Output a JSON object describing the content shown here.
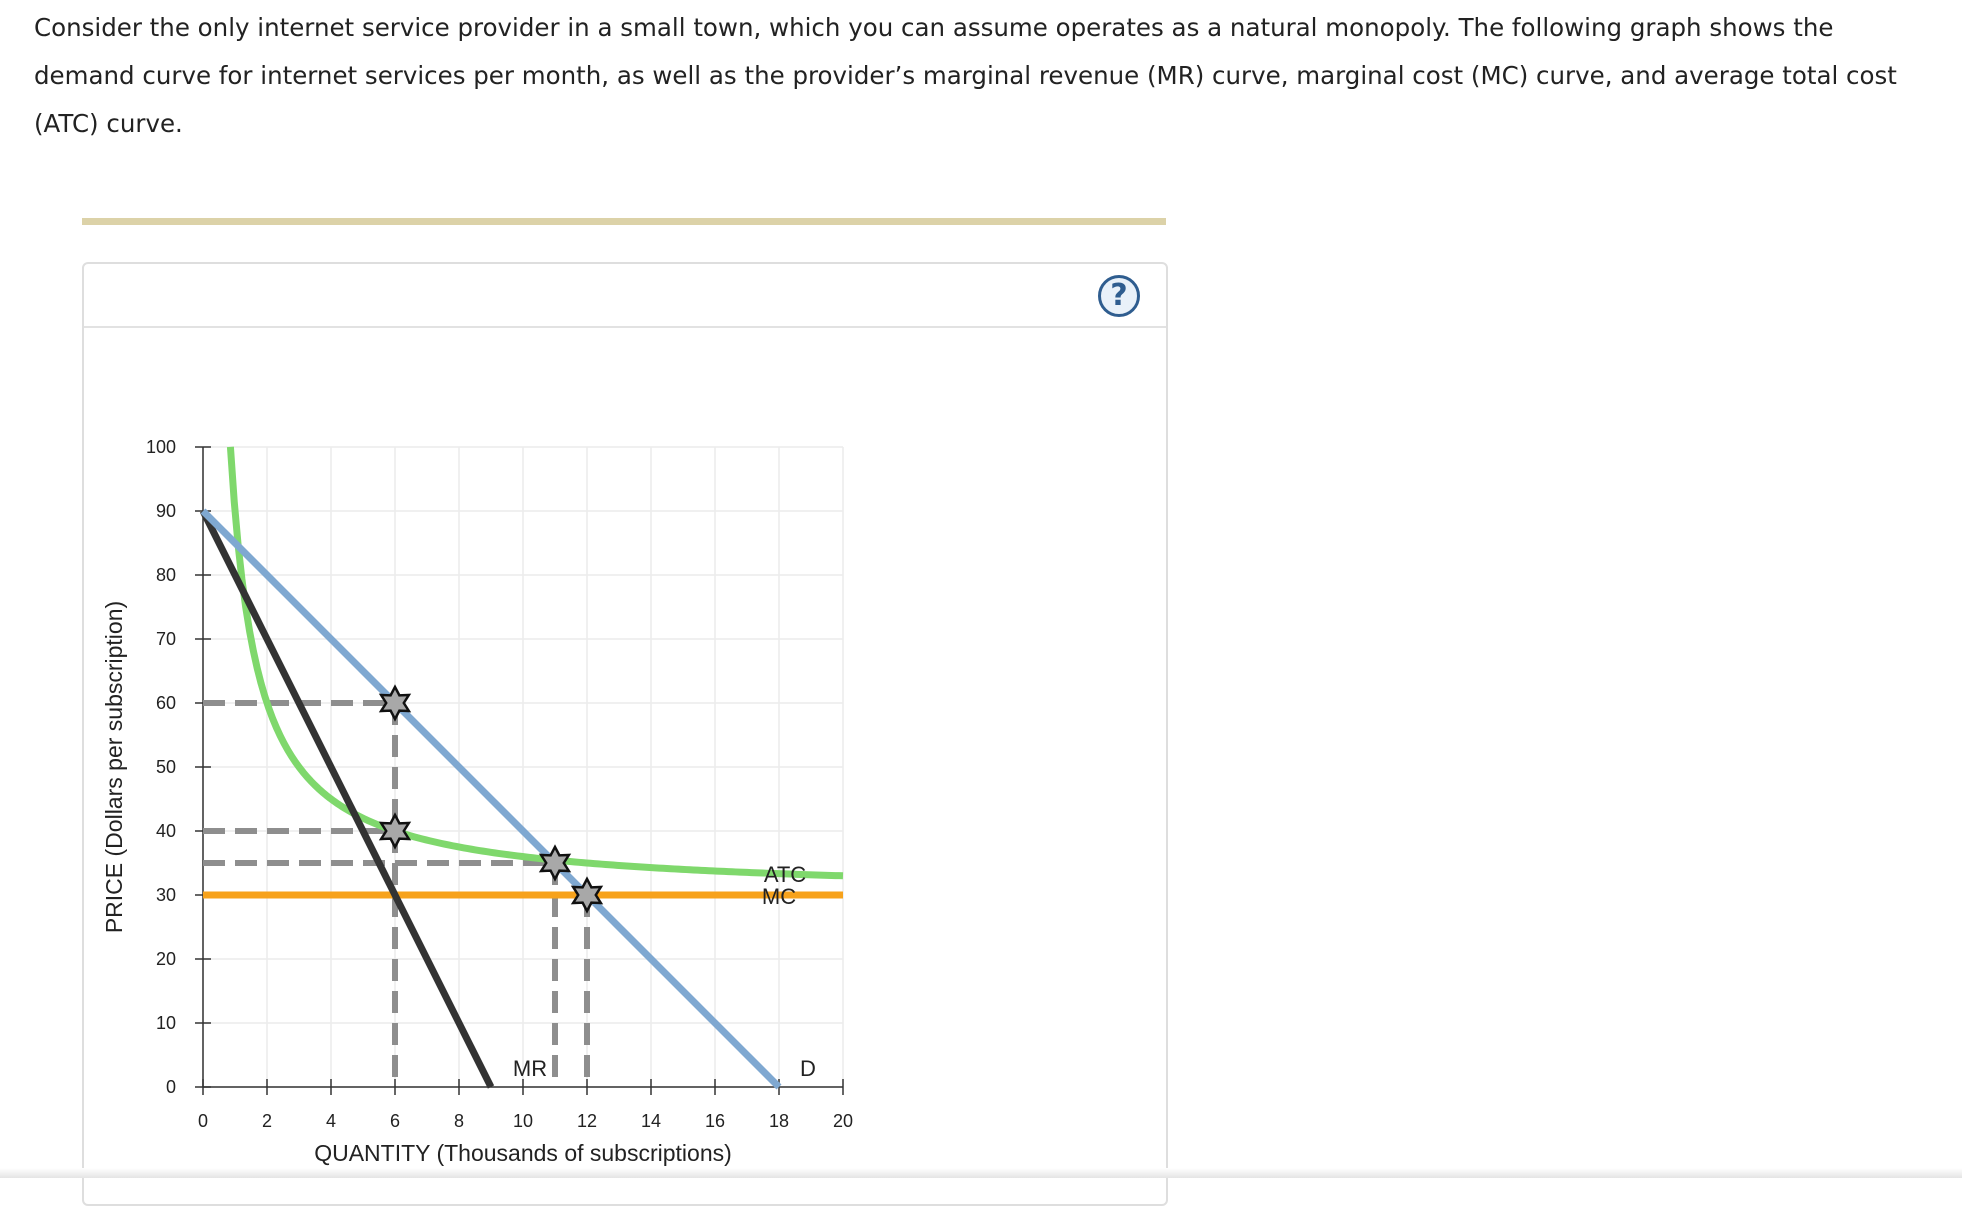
{
  "intro_text": "Consider the only internet service provider in a small town, which you can assume operates as a natural monopoly. The following graph shows the demand curve for internet services per month, as well as the provider’s marginal revenue (MR) curve, marginal cost (MC) curve, and average total cost (ATC) curve.",
  "help_label": "?",
  "help_icon": "help-circle-icon",
  "colors": {
    "demand": "#7fa8d1",
    "marginal_revenue": "#333333",
    "atc": "#7fd86c",
    "mc": "#f7a21b",
    "guide_dash": "#8e8e8e",
    "grid": "#ececec",
    "accent_rule": "#dcd2a8"
  },
  "chart_data": {
    "type": "line",
    "xlabel": "QUANTITY (Thousands of subscriptions)",
    "ylabel": "PRICE (Dollars per subscription)",
    "xlim": [
      0,
      20
    ],
    "ylim": [
      0,
      100
    ],
    "x_ticks": [
      0,
      2,
      4,
      6,
      8,
      10,
      12,
      14,
      16,
      18,
      20
    ],
    "y_ticks": [
      0,
      10,
      20,
      30,
      40,
      50,
      60,
      70,
      80,
      90,
      100
    ],
    "grid": true,
    "series": [
      {
        "name": "D",
        "points": [
          [
            0,
            90
          ],
          [
            18,
            0
          ]
        ]
      },
      {
        "name": "MR",
        "points": [
          [
            0,
            90
          ],
          [
            9,
            0
          ]
        ]
      },
      {
        "name": "MC",
        "points": [
          [
            0,
            30
          ],
          [
            20,
            30
          ]
        ]
      },
      {
        "name": "ATC",
        "formula": "30 + 60/q",
        "x_range": [
          0.857,
          20
        ]
      }
    ],
    "markers": [
      {
        "x": 6,
        "y": 60
      },
      {
        "x": 6,
        "y": 40
      },
      {
        "x": 11,
        "y": 35
      },
      {
        "x": 12,
        "y": 30
      }
    ],
    "guides_horizontal": [
      {
        "y": 60,
        "to_x": 6
      },
      {
        "y": 40,
        "to_x": 6
      },
      {
        "y": 35,
        "to_x": 11
      },
      {
        "y": 30,
        "to_x": 12
      }
    ],
    "guides_vertical": [
      {
        "x": 6,
        "from_y": 60
      },
      {
        "x": 11,
        "from_y": 35
      },
      {
        "x": 12,
        "from_y": 30
      }
    ]
  }
}
